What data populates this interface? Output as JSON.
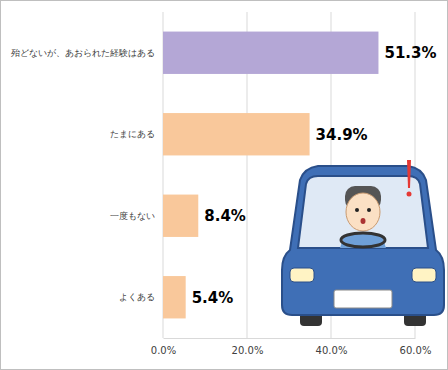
{
  "chart_data": {
    "type": "bar",
    "orientation": "horizontal",
    "categories": [
      "殆どないが、あおられた経験はある",
      "たまにある",
      "一度もない",
      "よくある"
    ],
    "values": [
      51.3,
      34.9,
      8.4,
      5.4
    ],
    "value_labels": [
      "51.3%",
      "34.9%",
      "8.4%",
      "5.4%"
    ],
    "colors": [
      "#b4a7d6",
      "#f9c89b",
      "#f9c89b",
      "#f9c89b"
    ],
    "xlim": [
      0,
      60
    ],
    "xticks": [
      {
        "value": 0,
        "label": "0.0%"
      },
      {
        "value": 20,
        "label": "20.0%"
      },
      {
        "value": 40,
        "label": "40.0%"
      },
      {
        "value": 60,
        "label": "60.0%"
      }
    ],
    "grid": true,
    "data_labels": true
  }
}
